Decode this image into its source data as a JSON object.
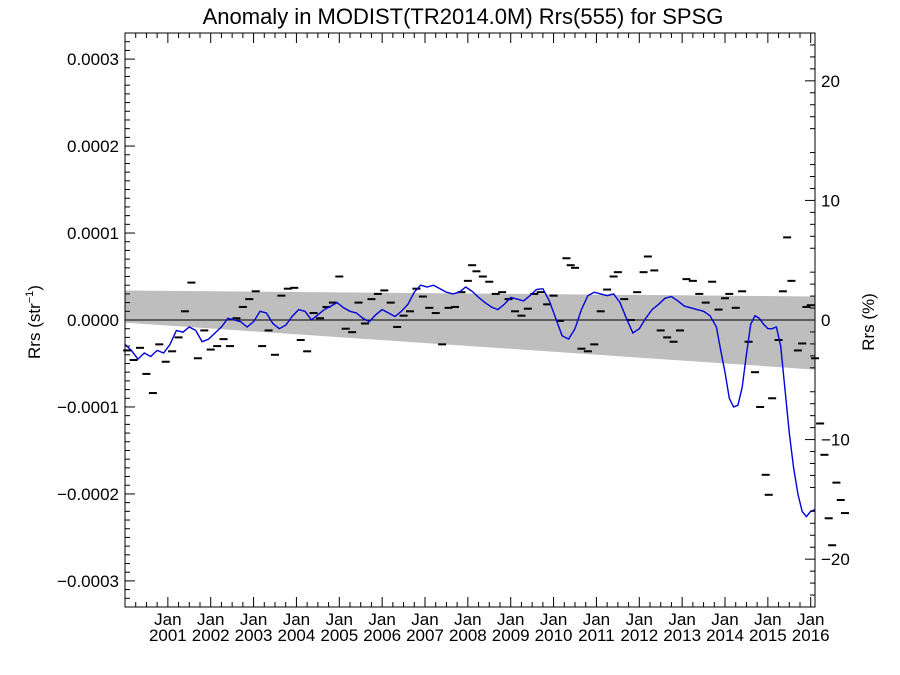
{
  "chart_data": {
    "type": "line",
    "title": "Anomaly in MODIST(TR2014.0M) Rrs(555) for SPSG",
    "ylabel_left": {
      "main": "Rrs (str",
      "sup": "−1",
      "end": ")"
    },
    "ylabel_right": "Rrs (%)",
    "xlim": [
      2000.0,
      2016.1
    ],
    "ylim_left": [
      -0.00033,
      0.00033
    ],
    "ylim_right": [
      -24,
      24
    ],
    "x_ticks": [
      {
        "x": 2001.0,
        "top": "Jan",
        "bottom": "2001"
      },
      {
        "x": 2002.0,
        "top": "Jan",
        "bottom": "2002"
      },
      {
        "x": 2003.0,
        "top": "Jan",
        "bottom": "2003"
      },
      {
        "x": 2004.0,
        "top": "Jan",
        "bottom": "2004"
      },
      {
        "x": 2005.0,
        "top": "Jan",
        "bottom": "2005"
      },
      {
        "x": 2006.0,
        "top": "Jan",
        "bottom": "2006"
      },
      {
        "x": 2007.0,
        "top": "Jan",
        "bottom": "2007"
      },
      {
        "x": 2008.0,
        "top": "Jan",
        "bottom": "2008"
      },
      {
        "x": 2009.0,
        "top": "Jan",
        "bottom": "2009"
      },
      {
        "x": 2010.0,
        "top": "Jan",
        "bottom": "2010"
      },
      {
        "x": 2011.0,
        "top": "Jan",
        "bottom": "2011"
      },
      {
        "x": 2012.0,
        "top": "Jan",
        "bottom": "2012"
      },
      {
        "x": 2013.0,
        "top": "Jan",
        "bottom": "2013"
      },
      {
        "x": 2014.0,
        "top": "Jan",
        "bottom": "2014"
      },
      {
        "x": 2015.0,
        "top": "Jan",
        "bottom": "2015"
      },
      {
        "x": 2016.0,
        "top": "Jan",
        "bottom": "2016"
      }
    ],
    "y_ticks_left": [
      {
        "v": 0.0003,
        "label": "0.0003"
      },
      {
        "v": 0.0002,
        "label": "0.0002"
      },
      {
        "v": 0.0001,
        "label": "0.0001"
      },
      {
        "v": 0.0,
        "label": "0.0000"
      },
      {
        "v": -0.0001,
        "label": "−0.0001"
      },
      {
        "v": -0.0002,
        "label": "−0.0002"
      },
      {
        "v": -0.0003,
        "label": "−0.0003"
      }
    ],
    "y_ticks_right": [
      {
        "v": 20,
        "label": "20"
      },
      {
        "v": 10,
        "label": "10"
      },
      {
        "v": 0,
        "label": "0"
      },
      {
        "v": -10,
        "label": "−10"
      },
      {
        "v": -20,
        "label": "−20"
      }
    ],
    "band": {
      "color": "#bebebe",
      "upper": [
        [
          2000.0,
          3.4e-05
        ],
        [
          2016.1,
          2.7e-05
        ]
      ],
      "lower": [
        [
          2000.0,
          -3e-06
        ],
        [
          2016.1,
          -5.7e-05
        ]
      ]
    },
    "zero_line": 0.0,
    "series": [
      {
        "style": "dash-markers",
        "color": "#000000",
        "points": [
          [
            2000.05,
            -3.5e-05
          ],
          [
            2000.2,
            -4.6e-05
          ],
          [
            2000.35,
            -3.2e-05
          ],
          [
            2000.5,
            -6.2e-05
          ],
          [
            2000.65,
            -8.4e-05
          ],
          [
            2000.8,
            -2.8e-05
          ],
          [
            2000.95,
            -4.8e-05
          ],
          [
            2001.1,
            -3.6e-05
          ],
          [
            2001.25,
            -2e-05
          ],
          [
            2001.4,
            1e-05
          ],
          [
            2001.55,
            4.3e-05
          ],
          [
            2001.7,
            -4.4e-05
          ],
          [
            2001.85,
            -1.2e-05
          ],
          [
            2002.0,
            -3.4e-05
          ],
          [
            2002.15,
            -3e-05
          ],
          [
            2002.3,
            -2.2e-05
          ],
          [
            2002.45,
            -3e-05
          ],
          [
            2002.6,
            2e-06
          ],
          [
            2002.75,
            1.5e-05
          ],
          [
            2002.9,
            2.4e-05
          ],
          [
            2003.05,
            3.3e-05
          ],
          [
            2003.2,
            -3e-05
          ],
          [
            2003.35,
            -1.2e-05
          ],
          [
            2003.5,
            -4e-05
          ],
          [
            2003.65,
            2.8e-05
          ],
          [
            2003.8,
            3.6e-05
          ],
          [
            2003.95,
            3.7e-05
          ],
          [
            2004.1,
            -2.3e-05
          ],
          [
            2004.25,
            -3.6e-05
          ],
          [
            2004.4,
            8e-06
          ],
          [
            2004.55,
            2e-06
          ],
          [
            2004.7,
            1.5e-05
          ],
          [
            2004.85,
            2e-05
          ],
          [
            2005.0,
            5e-05
          ],
          [
            2005.15,
            -1e-05
          ],
          [
            2005.3,
            -1.4e-05
          ],
          [
            2005.45,
            2e-05
          ],
          [
            2005.6,
            -4e-06
          ],
          [
            2005.75,
            2.4e-05
          ],
          [
            2005.9,
            3e-05
          ],
          [
            2006.05,
            3.4e-05
          ],
          [
            2006.2,
            2e-05
          ],
          [
            2006.35,
            -8e-06
          ],
          [
            2006.5,
            5e-06
          ],
          [
            2006.65,
            1e-05
          ],
          [
            2006.8,
            3.6e-05
          ],
          [
            2006.95,
            2.7e-05
          ],
          [
            2007.1,
            1.4e-05
          ],
          [
            2007.25,
            8e-06
          ],
          [
            2007.4,
            -2.8e-05
          ],
          [
            2007.55,
            1.4e-05
          ],
          [
            2007.7,
            1.5e-05
          ],
          [
            2007.85,
            3.2e-05
          ],
          [
            2008.0,
            4.5e-05
          ],
          [
            2008.1,
            6.3e-05
          ],
          [
            2008.2,
            5.6e-05
          ],
          [
            2008.35,
            5e-05
          ],
          [
            2008.5,
            4.4e-05
          ],
          [
            2008.65,
            3e-05
          ],
          [
            2008.8,
            3.2e-05
          ],
          [
            2008.95,
            2.4e-05
          ],
          [
            2009.1,
            1e-05
          ],
          [
            2009.25,
            5e-06
          ],
          [
            2009.4,
            1.3e-05
          ],
          [
            2009.55,
            3e-05
          ],
          [
            2009.7,
            3.2e-05
          ],
          [
            2009.85,
            1.8e-05
          ],
          [
            2010.0,
            2.8e-05
          ],
          [
            2010.15,
            -1e-06
          ],
          [
            2010.3,
            7.1e-05
          ],
          [
            2010.4,
            6.3e-05
          ],
          [
            2010.5,
            6e-05
          ],
          [
            2010.65,
            -3.3e-05
          ],
          [
            2010.8,
            -3.6e-05
          ],
          [
            2010.95,
            -2.8e-05
          ],
          [
            2011.1,
            1e-05
          ],
          [
            2011.25,
            3.5e-05
          ],
          [
            2011.4,
            5e-05
          ],
          [
            2011.5,
            5.5e-05
          ],
          [
            2011.65,
            2.4e-05
          ],
          [
            2011.8,
            0.0
          ],
          [
            2011.95,
            3.2e-05
          ],
          [
            2012.1,
            5.5e-05
          ],
          [
            2012.2,
            7.3e-05
          ],
          [
            2012.35,
            5.7e-05
          ],
          [
            2012.5,
            -1.2e-05
          ],
          [
            2012.65,
            -2e-05
          ],
          [
            2012.8,
            -2.5e-05
          ],
          [
            2012.95,
            -1.2e-05
          ],
          [
            2013.1,
            4.7e-05
          ],
          [
            2013.25,
            4.5e-05
          ],
          [
            2013.4,
            3e-05
          ],
          [
            2013.55,
            2e-05
          ],
          [
            2013.7,
            4.4e-05
          ],
          [
            2013.85,
            1.2e-05
          ],
          [
            2014.0,
            2.5e-05
          ],
          [
            2014.1,
            3e-05
          ],
          [
            2014.25,
            1.4e-05
          ],
          [
            2014.4,
            3.3e-05
          ],
          [
            2014.55,
            -2.5e-05
          ],
          [
            2014.7,
            -6e-05
          ],
          [
            2014.82,
            -0.0001
          ],
          [
            2014.95,
            -0.000178
          ],
          [
            2015.02,
            -0.000201
          ],
          [
            2015.1,
            -9e-05
          ],
          [
            2015.25,
            -2.3e-05
          ],
          [
            2015.35,
            3.3e-05
          ],
          [
            2015.45,
            9.5e-05
          ],
          [
            2015.55,
            4.5e-05
          ],
          [
            2015.7,
            -3.5e-05
          ],
          [
            2015.8,
            -2.7e-05
          ],
          [
            2015.9,
            1.5e-05
          ],
          [
            2016.0,
            1.7e-05
          ],
          [
            2016.1,
            -4.4e-05
          ],
          [
            2016.22,
            -0.000119
          ],
          [
            2016.32,
            -0.000155
          ],
          [
            2016.42,
            -0.000228
          ],
          [
            2016.5,
            -0.000259
          ],
          [
            2016.6,
            -0.000187
          ],
          [
            2016.7,
            -0.000207
          ],
          [
            2016.8,
            -0.000222
          ]
        ]
      },
      {
        "style": "line",
        "color": "#0000dd",
        "points": [
          [
            2000.0,
            -2.8e-05
          ],
          [
            2000.15,
            -3.5e-05
          ],
          [
            2000.3,
            -4.5e-05
          ],
          [
            2000.45,
            -3.8e-05
          ],
          [
            2000.6,
            -4.2e-05
          ],
          [
            2000.75,
            -3.5e-05
          ],
          [
            2000.9,
            -3.8e-05
          ],
          [
            2001.05,
            -2.8e-05
          ],
          [
            2001.2,
            -1.2e-05
          ],
          [
            2001.35,
            -1.4e-05
          ],
          [
            2001.5,
            -8e-06
          ],
          [
            2001.65,
            -1.2e-05
          ],
          [
            2001.8,
            -2.5e-05
          ],
          [
            2001.95,
            -2.2e-05
          ],
          [
            2002.1,
            -1.5e-05
          ],
          [
            2002.25,
            -8e-06
          ],
          [
            2002.4,
            2e-06
          ],
          [
            2002.55,
            0.0
          ],
          [
            2002.7,
            -2e-06
          ],
          [
            2002.85,
            -8e-06
          ],
          [
            2003.0,
            -2e-06
          ],
          [
            2003.15,
            1e-05
          ],
          [
            2003.3,
            8e-06
          ],
          [
            2003.45,
            -4e-06
          ],
          [
            2003.6,
            -1e-05
          ],
          [
            2003.75,
            -6e-06
          ],
          [
            2003.9,
            4e-06
          ],
          [
            2004.05,
            1.2e-05
          ],
          [
            2004.2,
            1e-05
          ],
          [
            2004.35,
            0.0
          ],
          [
            2004.5,
            6e-06
          ],
          [
            2004.65,
            1.2e-05
          ],
          [
            2004.8,
            1.6e-05
          ],
          [
            2004.95,
            2e-05
          ],
          [
            2005.1,
            1.4e-05
          ],
          [
            2005.25,
            1e-05
          ],
          [
            2005.4,
            8e-06
          ],
          [
            2005.55,
            2e-06
          ],
          [
            2005.7,
            -2e-06
          ],
          [
            2005.85,
            6e-06
          ],
          [
            2006.0,
            1.2e-05
          ],
          [
            2006.15,
            8e-06
          ],
          [
            2006.3,
            4e-06
          ],
          [
            2006.45,
            1e-05
          ],
          [
            2006.6,
            1.8e-05
          ],
          [
            2006.75,
            3.2e-05
          ],
          [
            2006.9,
            4e-05
          ],
          [
            2007.05,
            3.8e-05
          ],
          [
            2007.2,
            4e-05
          ],
          [
            2007.35,
            3.6e-05
          ],
          [
            2007.5,
            3.2e-05
          ],
          [
            2007.65,
            3e-05
          ],
          [
            2007.8,
            3.2e-05
          ],
          [
            2007.95,
            3.8e-05
          ],
          [
            2008.1,
            3.3e-05
          ],
          [
            2008.25,
            2.6e-05
          ],
          [
            2008.4,
            2e-05
          ],
          [
            2008.55,
            1.5e-05
          ],
          [
            2008.7,
            1.2e-05
          ],
          [
            2008.85,
            1.8e-05
          ],
          [
            2009.0,
            2.6e-05
          ],
          [
            2009.15,
            2.4e-05
          ],
          [
            2009.3,
            2.2e-05
          ],
          [
            2009.45,
            2.8e-05
          ],
          [
            2009.6,
            3.5e-05
          ],
          [
            2009.75,
            3.6e-05
          ],
          [
            2009.9,
            2.2e-05
          ],
          [
            2010.05,
            2e-06
          ],
          [
            2010.2,
            -1.8e-05
          ],
          [
            2010.35,
            -2.2e-05
          ],
          [
            2010.5,
            -1e-05
          ],
          [
            2010.65,
            1.2e-05
          ],
          [
            2010.8,
            2.8e-05
          ],
          [
            2010.95,
            3.2e-05
          ],
          [
            2011.1,
            3e-05
          ],
          [
            2011.25,
            2.8e-05
          ],
          [
            2011.4,
            3e-05
          ],
          [
            2011.55,
            2e-05
          ],
          [
            2011.7,
            2e-06
          ],
          [
            2011.85,
            -1.5e-05
          ],
          [
            2012.0,
            -1e-05
          ],
          [
            2012.15,
            2e-06
          ],
          [
            2012.3,
            1.2e-05
          ],
          [
            2012.45,
            1.8e-05
          ],
          [
            2012.6,
            2.5e-05
          ],
          [
            2012.75,
            2.7e-05
          ],
          [
            2012.9,
            2.2e-05
          ],
          [
            2013.05,
            1.6e-05
          ],
          [
            2013.2,
            1.4e-05
          ],
          [
            2013.35,
            1.2e-05
          ],
          [
            2013.5,
            1e-05
          ],
          [
            2013.65,
            5e-06
          ],
          [
            2013.8,
            -8e-06
          ],
          [
            2013.9,
            -3.5e-05
          ],
          [
            2014.0,
            -6e-05
          ],
          [
            2014.1,
            -9e-05
          ],
          [
            2014.2,
            -0.0001
          ],
          [
            2014.3,
            -9.8e-05
          ],
          [
            2014.4,
            -7.8e-05
          ],
          [
            2014.5,
            -4e-05
          ],
          [
            2014.6,
            -5e-06
          ],
          [
            2014.7,
            5e-06
          ],
          [
            2014.8,
            2e-06
          ],
          [
            2014.9,
            -5e-06
          ],
          [
            2015.0,
            -1e-05
          ],
          [
            2015.1,
            -1e-05
          ],
          [
            2015.2,
            -8e-06
          ],
          [
            2015.3,
            -3e-05
          ],
          [
            2015.4,
            -8e-05
          ],
          [
            2015.5,
            -0.00013
          ],
          [
            2015.6,
            -0.00017
          ],
          [
            2015.7,
            -0.0002
          ],
          [
            2015.8,
            -0.00022
          ],
          [
            2015.9,
            -0.000226
          ],
          [
            2016.0,
            -0.00022
          ],
          [
            2016.1,
            -0.000218
          ]
        ]
      }
    ]
  }
}
